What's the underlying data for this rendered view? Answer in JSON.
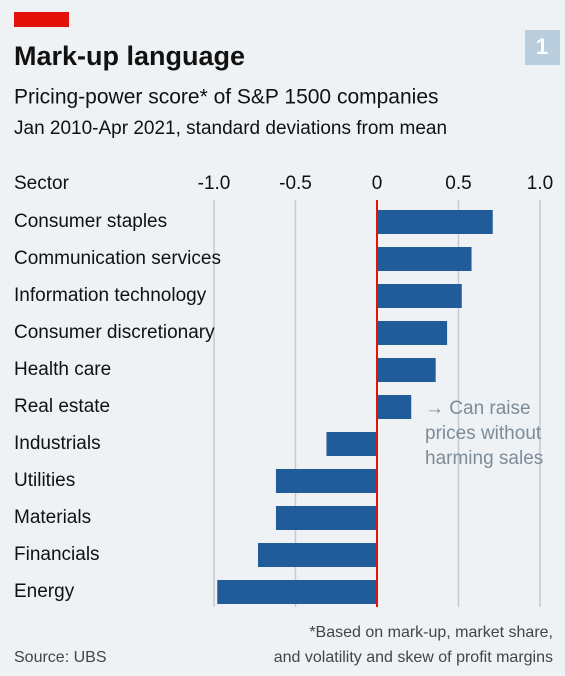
{
  "chart_data": {
    "type": "barh",
    "badge": "1",
    "title": "Mark-up language",
    "subtitle": "Pricing-power score* of S&P 1500 companies",
    "subtitle2": "Jan 2010-Apr 2021, standard deviations from mean",
    "category_header": "Sector",
    "categories": [
      "Consumer staples",
      "Communication services",
      "Information technology",
      "Consumer discretionary",
      "Health care",
      "Real estate",
      "Industrials",
      "Utilities",
      "Materials",
      "Financials",
      "Energy"
    ],
    "values": [
      0.71,
      0.58,
      0.52,
      0.43,
      0.36,
      0.21,
      -0.31,
      -0.62,
      -0.62,
      -0.73,
      -0.98
    ],
    "color": "#1f5c99",
    "zero_line_color": "#e3120b",
    "xlim": [
      -1,
      1
    ],
    "xticks": [
      {
        "value": -1,
        "label": "-1.0"
      },
      -0.5,
      0,
      0.5,
      {
        "value": 1,
        "label": "1.0"
      }
    ],
    "grid": true,
    "annotation": [
      "→ Can raise",
      "prices without",
      "harming sales"
    ],
    "footnote": [
      "*Based on mark-up, market share,",
      "and volatility and skew of profit margins"
    ],
    "source": "Source: UBS"
  }
}
